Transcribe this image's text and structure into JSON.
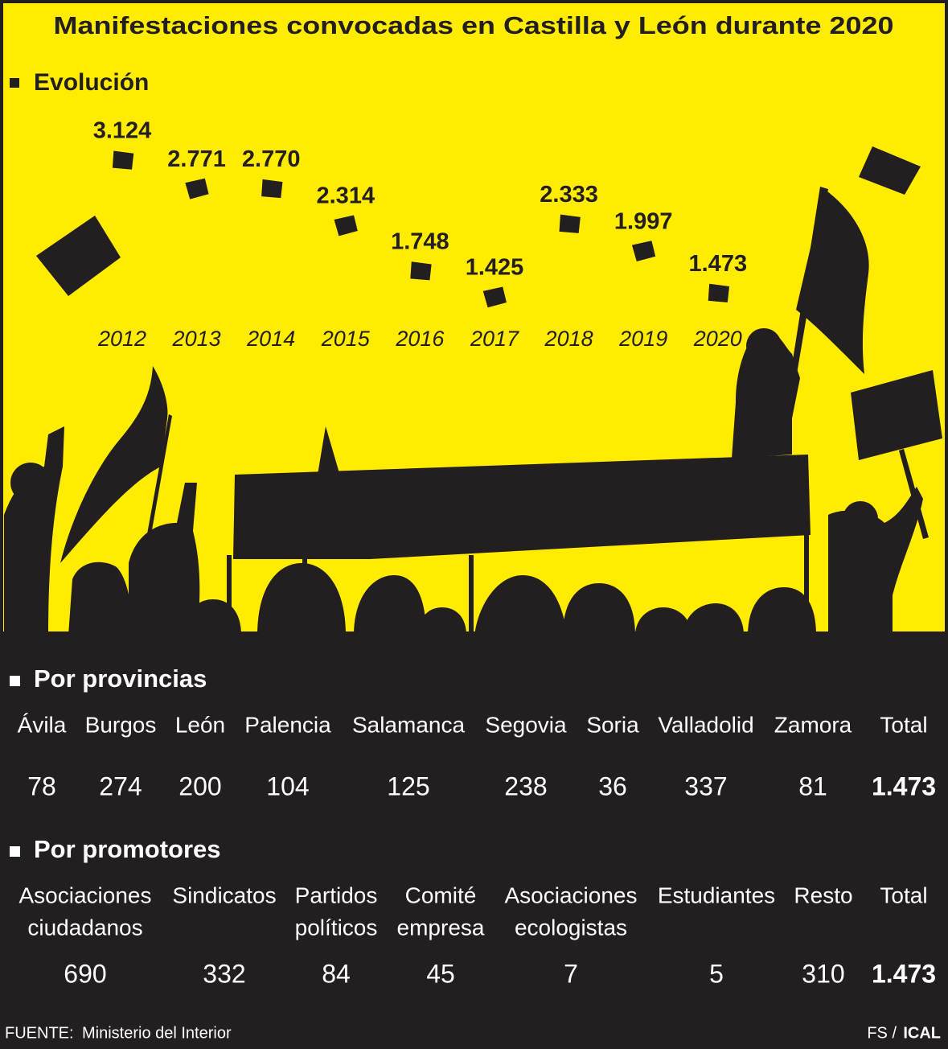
{
  "chart_data": {
    "type": "paper-scatter",
    "title": "Manifestaciones convocadas en Castilla y León durante 2020",
    "subtitle": "Evolución",
    "categories": [
      "2012",
      "2013",
      "2014",
      "2015",
      "2016",
      "2017",
      "2018",
      "2019",
      "2020"
    ],
    "values": [
      3124,
      2771,
      2770,
      2314,
      1748,
      1425,
      2333,
      1997,
      1473
    ],
    "value_labels": [
      "3.124",
      "2.771",
      "2.770",
      "2.314",
      "1.748",
      "1.425",
      "2.333",
      "1.997",
      "1.473"
    ],
    "color": "#231f20"
  },
  "provincias": {
    "title": "Por provincias",
    "headers": [
      "Ávila",
      "Burgos",
      "León",
      "Palencia",
      "Salamanca",
      "Segovia",
      "Soria",
      "Valladolid",
      "Zamora",
      "Total"
    ],
    "values": [
      "78",
      "274",
      "200",
      "104",
      "125",
      "238",
      "36",
      "337",
      "81",
      "1.473"
    ]
  },
  "promotores": {
    "title": "Por promotores",
    "headers": [
      [
        "Asociaciones",
        "ciudadanos"
      ],
      [
        "Sindicatos"
      ],
      [
        "Partidos",
        "políticos"
      ],
      [
        "Comité",
        "empresa"
      ],
      [
        "Asociaciones",
        "ecologistas"
      ],
      [
        "Estudiantes"
      ],
      [
        "Resto"
      ],
      [
        "Total"
      ]
    ],
    "values": [
      "690",
      "332",
      "84",
      "45",
      "7",
      "5",
      "310",
      "1.473"
    ]
  },
  "footer": {
    "source_label": "FUENTE:",
    "source": "Ministerio del Interior",
    "credit": "FS /",
    "agency": "ICAL"
  }
}
